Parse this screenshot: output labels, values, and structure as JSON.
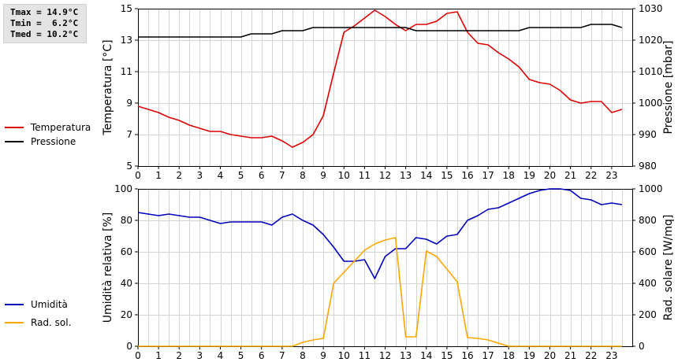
{
  "stats": {
    "tmax": "Tmax = 14.9°C",
    "tmin": "Tmin =  6.2°C",
    "tmed": "Tmed = 10.2°C"
  },
  "chart_data": [
    {
      "type": "line",
      "x_ticks": [
        "0",
        "1",
        "2",
        "3",
        "4",
        "5",
        "6",
        "7",
        "8",
        "9",
        "10",
        "11",
        "12",
        "13",
        "14",
        "15",
        "16",
        "17",
        "18",
        "19",
        "20",
        "21",
        "22",
        "23"
      ],
      "xlim": [
        0,
        24
      ],
      "grid": true,
      "left_axis": {
        "label": "Temperatura [°C]",
        "range": [
          5,
          15
        ],
        "ticks": [
          "5",
          "7",
          "9",
          "11",
          "13",
          "15"
        ]
      },
      "right_axis": {
        "label": "Pressione [mbar]",
        "range": [
          980,
          1030
        ],
        "ticks": [
          "980",
          "990",
          "1000",
          "1010",
          "1020",
          "1030"
        ]
      },
      "series": [
        {
          "name": "Temperatura",
          "axis": "left",
          "color": "#dd0000",
          "x": [
            0,
            0.5,
            1,
            1.5,
            2,
            2.5,
            3,
            3.5,
            4,
            4.5,
            5,
            5.5,
            6,
            6.5,
            7,
            7.5,
            8,
            8.5,
            9,
            9.5,
            10,
            10.5,
            11,
            11.5,
            12,
            12.5,
            13,
            13.5,
            14,
            14.5,
            15,
            15.5,
            16,
            16.5,
            17,
            17.5,
            18,
            18.5,
            19,
            19.5,
            20,
            20.5,
            21,
            21.5,
            22,
            22.5,
            23,
            23.5
          ],
          "values": [
            8.8,
            8.6,
            8.4,
            8.1,
            7.9,
            7.6,
            7.4,
            7.2,
            7.2,
            7.0,
            6.9,
            6.8,
            6.8,
            6.9,
            6.6,
            6.2,
            6.5,
            7.0,
            8.2,
            10.9,
            13.5,
            13.9,
            14.4,
            14.9,
            14.5,
            14.0,
            13.6,
            14.0,
            14.0,
            14.2,
            14.7,
            14.8,
            13.5,
            12.8,
            12.7,
            12.2,
            11.8,
            11.3,
            10.5,
            10.3,
            10.2,
            9.8,
            9.2,
            9.0,
            9.1,
            9.1,
            8.4,
            8.6
          ]
        },
        {
          "name": "Pressione",
          "axis": "right",
          "color": "#000000",
          "x": [
            0,
            0.5,
            1,
            1.5,
            2,
            2.5,
            3,
            3.5,
            4,
            4.5,
            5,
            5.5,
            6,
            6.5,
            7,
            7.5,
            8,
            8.5,
            9,
            9.5,
            10,
            10.5,
            11,
            11.5,
            12,
            12.5,
            13,
            13.5,
            14,
            14.5,
            15,
            15.5,
            16,
            16.5,
            17,
            17.5,
            18,
            18.5,
            19,
            19.5,
            20,
            20.5,
            21,
            21.5,
            22,
            22.5,
            23,
            23.5
          ],
          "values": [
            1021,
            1021,
            1021,
            1021,
            1021,
            1021,
            1021,
            1021,
            1021,
            1021,
            1021,
            1022,
            1022,
            1022,
            1023,
            1023,
            1023,
            1024,
            1024,
            1024,
            1024,
            1024,
            1024,
            1024,
            1024,
            1024,
            1024,
            1023,
            1023,
            1023,
            1023,
            1023,
            1023,
            1023,
            1023,
            1023,
            1023,
            1023,
            1024,
            1024,
            1024,
            1024,
            1024,
            1024,
            1025,
            1025,
            1025,
            1024
          ]
        }
      ]
    },
    {
      "type": "line",
      "x_ticks": [
        "0",
        "1",
        "2",
        "3",
        "4",
        "5",
        "6",
        "7",
        "8",
        "9",
        "10",
        "11",
        "12",
        "13",
        "14",
        "15",
        "16",
        "17",
        "18",
        "19",
        "20",
        "21",
        "22",
        "23"
      ],
      "xlim": [
        0,
        24
      ],
      "grid": true,
      "left_axis": {
        "label": "Umidità relativa [%]",
        "range": [
          0,
          100
        ],
        "ticks": [
          "0",
          "20",
          "40",
          "60",
          "80",
          "100"
        ]
      },
      "right_axis": {
        "label": "Rad. solare [W/mq]",
        "range": [
          0,
          1000
        ],
        "ticks": [
          "0",
          "200",
          "400",
          "600",
          "800",
          "1000"
        ]
      },
      "series": [
        {
          "name": "Umidità",
          "axis": "left",
          "color": "#0000bb",
          "x": [
            0,
            0.5,
            1,
            1.5,
            2,
            2.5,
            3,
            3.5,
            4,
            4.5,
            5,
            5.5,
            6,
            6.5,
            7,
            7.5,
            8,
            8.5,
            9,
            9.5,
            10,
            10.5,
            11,
            11.5,
            12,
            12.5,
            13,
            13.5,
            14,
            14.5,
            15,
            15.5,
            16,
            16.5,
            17,
            17.5,
            18,
            18.5,
            19,
            19.5,
            20,
            20.5,
            21,
            21.5,
            22,
            22.5,
            23,
            23.5
          ],
          "values": [
            85,
            84,
            83,
            84,
            83,
            82,
            82,
            80,
            78,
            79,
            79,
            79,
            79,
            77,
            82,
            84,
            80,
            77,
            71,
            63,
            54,
            54,
            55,
            43,
            57,
            62,
            62,
            69,
            68,
            65,
            70,
            71,
            80,
            83,
            87,
            88,
            91,
            94,
            97,
            99,
            100,
            100,
            99,
            94,
            93,
            90,
            91,
            90
          ]
        },
        {
          "name": "Rad. sol.",
          "axis": "right",
          "color": "#ffa500",
          "x": [
            0,
            0.5,
            1,
            1.5,
            2,
            2.5,
            3,
            3.5,
            4,
            4.5,
            5,
            5.5,
            6,
            6.5,
            7,
            7.5,
            8,
            8.5,
            9,
            9.5,
            10,
            10.5,
            11,
            11.5,
            12,
            12.5,
            13,
            13.5,
            14,
            14.5,
            15,
            15.5,
            16,
            16.5,
            17,
            17.5,
            18,
            18.5,
            19,
            19.5,
            20,
            20.5,
            21,
            21.5,
            22,
            22.5,
            23,
            23.5
          ],
          "values": [
            0,
            0,
            0,
            0,
            0,
            0,
            0,
            0,
            0,
            0,
            0,
            0,
            0,
            0,
            0,
            0,
            25,
            40,
            50,
            400,
            470,
            540,
            610,
            650,
            675,
            690,
            60,
            60,
            605,
            570,
            490,
            410,
            55,
            50,
            40,
            20,
            0,
            0,
            0,
            0,
            0,
            0,
            0,
            0,
            0,
            0,
            0,
            0
          ]
        }
      ]
    }
  ]
}
